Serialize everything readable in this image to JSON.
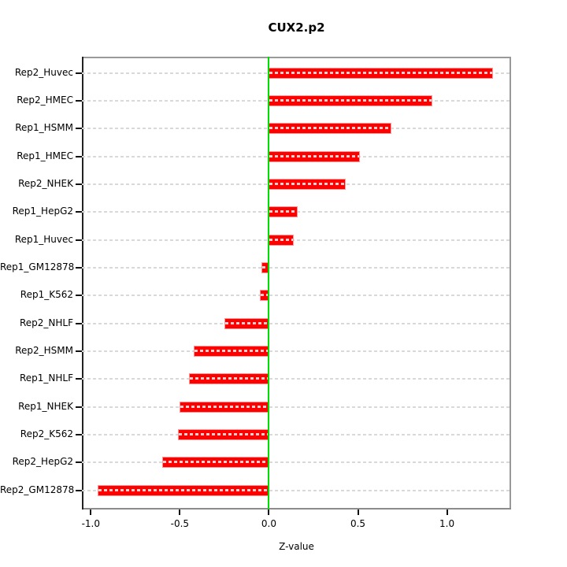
{
  "title": "CUX2.p2",
  "chart_data": {
    "type": "bar",
    "orientation": "horizontal",
    "title": "CUX2.p2",
    "xlabel": "Z-value",
    "ylabel": "",
    "categories": [
      "Rep2_Huvec",
      "Rep2_HMEC",
      "Rep1_HSMM",
      "Rep1_HMEC",
      "Rep2_NHEK",
      "Rep1_HepG2",
      "Rep1_Huvec",
      "Rep1_GM12878",
      "Rep1_K562",
      "Rep2_NHLF",
      "Rep2_HSMM",
      "Rep1_NHLF",
      "Rep1_NHEK",
      "Rep2_K562",
      "Rep2_HepG2",
      "Rep2_GM12878"
    ],
    "values": [
      1.26,
      0.92,
      0.69,
      0.51,
      0.43,
      0.16,
      0.14,
      -0.04,
      -0.05,
      -0.25,
      -0.42,
      -0.45,
      -0.5,
      -0.51,
      -0.6,
      -0.96
    ],
    "xticks": [
      "-1.0",
      "-0.5",
      "0.0",
      "0.5",
      "1.0"
    ],
    "xlim": [
      -1.05,
      1.36
    ],
    "grid": "dashed horizontal line per category, full plot width",
    "legend": "none",
    "zero_reference_line": 0,
    "colors": {
      "bar": "#fe0000",
      "bar_edge": "#ff9696",
      "bar_dash_overlay": "#ffffff",
      "zero_line": "#00dd00",
      "grid_line": "#d9d9d9",
      "box_border": "#999999",
      "axis_line": "#222222",
      "text": "#000000",
      "background": "#ffffff"
    }
  }
}
